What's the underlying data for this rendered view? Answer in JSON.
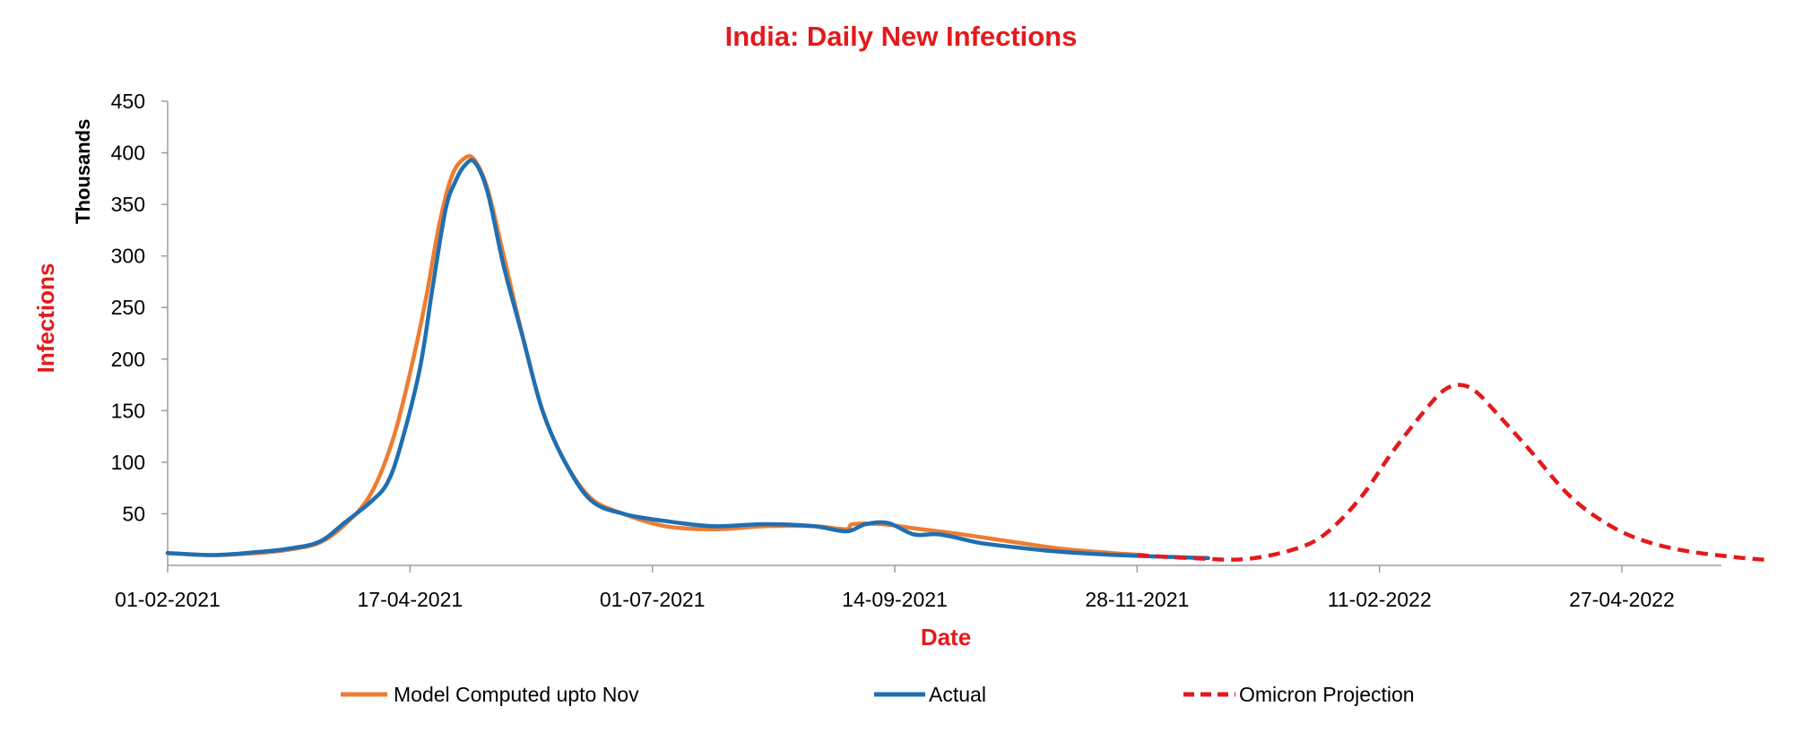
{
  "chart_data": {
    "type": "line",
    "title": "India: Daily New Infections",
    "xlabel": "Date",
    "ylabel": "Infections",
    "y_unit_label": "Thousands",
    "x_type": "date",
    "x_range": [
      "2021-02-01",
      "2022-06-15"
    ],
    "ylim": [
      0,
      450
    ],
    "yticks": [
      50,
      100,
      150,
      200,
      250,
      300,
      350,
      400,
      450
    ],
    "xticks": [
      "2021-02-01",
      "2021-04-17",
      "2021-07-01",
      "2021-09-14",
      "2021-11-28",
      "2022-02-11",
      "2022-04-27"
    ],
    "xtick_labels": [
      "01-02-2021",
      "17-04-2021",
      "01-07-2021",
      "14-09-2021",
      "28-11-2021",
      "11-02-2022",
      "27-04-2022"
    ],
    "grid": false,
    "legend_position": "bottom",
    "colors": {
      "title": "#e31a1c",
      "axis_title": "#e31a1c",
      "model": "#ed7d31",
      "actual": "#1f6fb2",
      "omicron": "#e31a1c",
      "axis": "#9e9e9e"
    },
    "series": [
      {
        "name": "Model Computed upto Nov",
        "style": "solid",
        "points": [
          [
            "2021-02-01",
            12
          ],
          [
            "2021-02-15",
            10
          ],
          [
            "2021-03-01",
            12
          ],
          [
            "2021-03-10",
            15
          ],
          [
            "2021-03-20",
            22
          ],
          [
            "2021-03-28",
            40
          ],
          [
            "2021-04-05",
            70
          ],
          [
            "2021-04-12",
            125
          ],
          [
            "2021-04-18",
            200
          ],
          [
            "2021-04-22",
            260
          ],
          [
            "2021-04-26",
            330
          ],
          [
            "2021-04-30",
            378
          ],
          [
            "2021-05-04",
            395
          ],
          [
            "2021-05-07",
            393
          ],
          [
            "2021-05-11",
            365
          ],
          [
            "2021-05-16",
            300
          ],
          [
            "2021-05-22",
            220
          ],
          [
            "2021-05-28",
            150
          ],
          [
            "2021-06-04",
            100
          ],
          [
            "2021-06-12",
            65
          ],
          [
            "2021-06-22",
            50
          ],
          [
            "2021-07-05",
            38
          ],
          [
            "2021-07-20",
            35
          ],
          [
            "2021-08-05",
            38
          ],
          [
            "2021-08-20",
            38
          ],
          [
            "2021-08-30",
            35
          ],
          [
            "2021-09-01",
            40
          ],
          [
            "2021-09-10",
            40
          ],
          [
            "2021-09-20",
            36
          ],
          [
            "2021-10-05",
            30
          ],
          [
            "2021-10-20",
            23
          ],
          [
            "2021-11-05",
            16
          ],
          [
            "2021-11-20",
            12
          ],
          [
            "2021-11-30",
            10
          ]
        ]
      },
      {
        "name": "Actual",
        "style": "solid",
        "points": [
          [
            "2021-02-01",
            12
          ],
          [
            "2021-02-15",
            10
          ],
          [
            "2021-03-01",
            13
          ],
          [
            "2021-03-10",
            16
          ],
          [
            "2021-03-20",
            23
          ],
          [
            "2021-03-28",
            42
          ],
          [
            "2021-04-05",
            62
          ],
          [
            "2021-04-10",
            80
          ],
          [
            "2021-04-14",
            115
          ],
          [
            "2021-04-20",
            190
          ],
          [
            "2021-04-24",
            270
          ],
          [
            "2021-04-28",
            345
          ],
          [
            "2021-05-01",
            372
          ],
          [
            "2021-05-04",
            388
          ],
          [
            "2021-05-07",
            391
          ],
          [
            "2021-05-11",
            362
          ],
          [
            "2021-05-16",
            290
          ],
          [
            "2021-05-22",
            220
          ],
          [
            "2021-05-28",
            150
          ],
          [
            "2021-06-04",
            100
          ],
          [
            "2021-06-12",
            63
          ],
          [
            "2021-06-22",
            50
          ],
          [
            "2021-07-05",
            43
          ],
          [
            "2021-07-20",
            38
          ],
          [
            "2021-08-05",
            40
          ],
          [
            "2021-08-20",
            38
          ],
          [
            "2021-08-30",
            33
          ],
          [
            "2021-09-05",
            40
          ],
          [
            "2021-09-12",
            41
          ],
          [
            "2021-09-20",
            30
          ],
          [
            "2021-09-28",
            30
          ],
          [
            "2021-10-10",
            22
          ],
          [
            "2021-10-20",
            18
          ],
          [
            "2021-11-01",
            14
          ],
          [
            "2021-11-15",
            11
          ],
          [
            "2021-11-30",
            9
          ],
          [
            "2021-12-10",
            8
          ],
          [
            "2021-12-20",
            7
          ]
        ]
      },
      {
        "name": "Omicron Projection",
        "style": "dashed",
        "points": [
          [
            "2021-11-28",
            10
          ],
          [
            "2021-12-15",
            7
          ],
          [
            "2021-12-31",
            6
          ],
          [
            "2022-01-15",
            15
          ],
          [
            "2022-01-25",
            30
          ],
          [
            "2022-02-05",
            65
          ],
          [
            "2022-02-15",
            110
          ],
          [
            "2022-02-25",
            150
          ],
          [
            "2022-03-03",
            170
          ],
          [
            "2022-03-08",
            175
          ],
          [
            "2022-03-13",
            168
          ],
          [
            "2022-03-20",
            145
          ],
          [
            "2022-03-30",
            110
          ],
          [
            "2022-04-10",
            70
          ],
          [
            "2022-04-20",
            45
          ],
          [
            "2022-05-01",
            27
          ],
          [
            "2022-05-15",
            15
          ],
          [
            "2022-06-01",
            8
          ],
          [
            "2022-06-12",
            5
          ]
        ]
      }
    ]
  }
}
